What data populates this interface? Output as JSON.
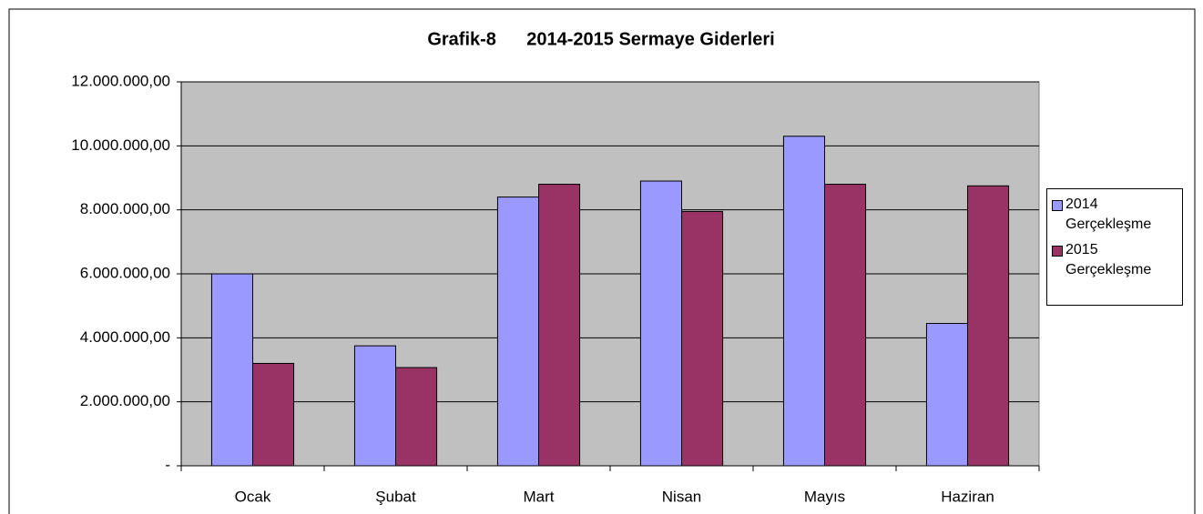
{
  "chart_data": {
    "type": "bar",
    "title": "Grafik-8      2014-2015 Sermaye Giderleri",
    "categories": [
      "Ocak",
      "Şubat",
      "Mart",
      "Nisan",
      "Mayıs",
      "Haziran"
    ],
    "series": [
      {
        "name": "2014 Gerçekleşme",
        "color": "#9999ff",
        "values": [
          6000000,
          3750000,
          8400000,
          8900000,
          10300000,
          4450000
        ]
      },
      {
        "name": "2015 Gerçekleşme",
        "color": "#993366",
        "values": [
          3200000,
          3070000,
          8800000,
          7950000,
          8800000,
          8750000
        ]
      }
    ],
    "ylim": [
      0,
      12000000
    ],
    "yticks": [
      {
        "value": 0,
        "label": "-"
      },
      {
        "value": 2000000,
        "label": "2.000.000,00"
      },
      {
        "value": 4000000,
        "label": "4.000.000,00"
      },
      {
        "value": 6000000,
        "label": "6.000.000,00"
      },
      {
        "value": 8000000,
        "label": "8.000.000,00"
      },
      {
        "value": 10000000,
        "label": "10.000.000,00"
      },
      {
        "value": 12000000,
        "label": "12.000.000,00"
      }
    ],
    "grid": true,
    "legend": "right",
    "plot_background": "#c0c0c0"
  }
}
